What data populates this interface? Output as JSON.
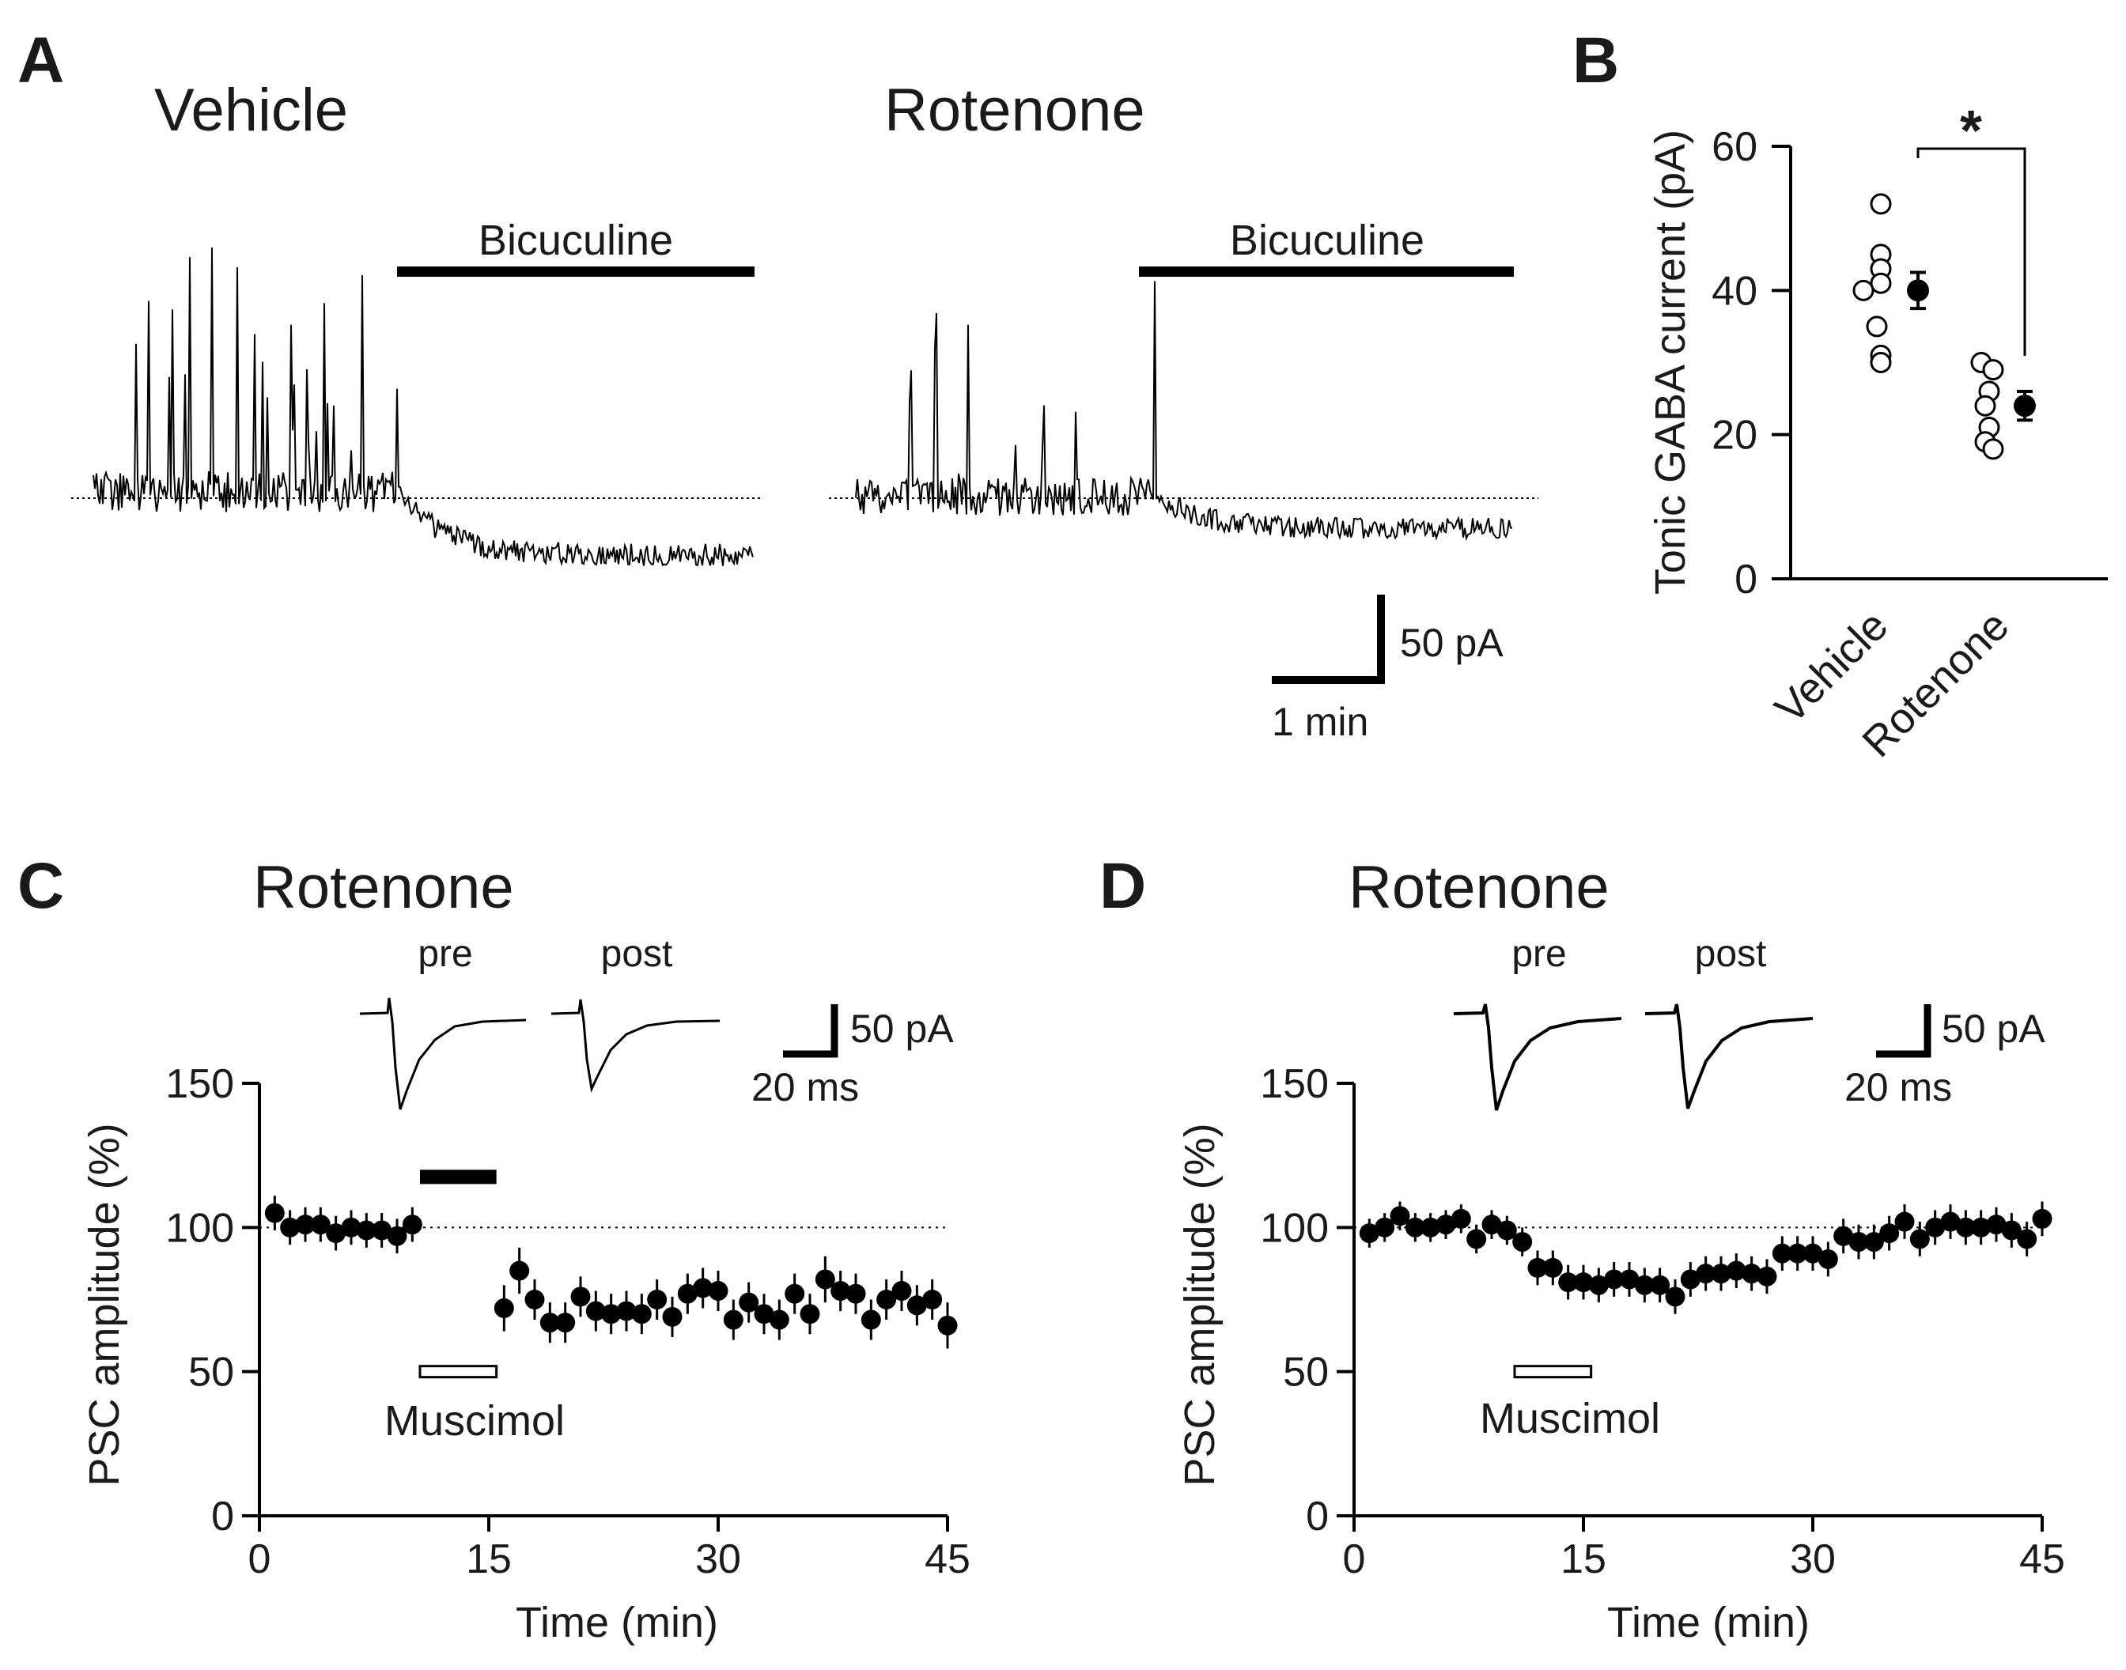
{
  "panel_letters": {
    "a": "A",
    "b": "B",
    "c": "C",
    "d": "D"
  },
  "panel_a": {
    "vehicle_title": "Vehicle",
    "rotenone_title": "Rotenone",
    "drug_bar_label": "Bicuculine",
    "scale_current": "50 pA",
    "scale_time": "1 min"
  },
  "panel_c": {
    "title": "Rotenone",
    "pre_label": "pre",
    "post_label": "post",
    "scale_current": "50 pA",
    "scale_time": "20 ms",
    "drug_label": "Muscimol"
  },
  "panel_d": {
    "title": "Rotenone",
    "pre_label": "pre",
    "post_label": "post",
    "scale_current": "50 pA",
    "scale_time": "20 ms",
    "drug_label": "Muscimol"
  },
  "chart_data": [
    {
      "id": "B",
      "type": "scatter",
      "title": "",
      "ylabel": "Tonic GABA current (pA)",
      "xlabel": "",
      "categories": [
        "Vehicle",
        "Rotenone"
      ],
      "ylim": [
        0,
        60
      ],
      "yticks": [
        0,
        20,
        40,
        60
      ],
      "significance": "*",
      "series": [
        {
          "name": "Vehicle",
          "individual": [
            52,
            45,
            43,
            41,
            40,
            35,
            31,
            30
          ],
          "mean": 40,
          "sem": 2.5
        },
        {
          "name": "Rotenone",
          "individual": [
            30,
            29,
            26,
            24,
            21,
            19,
            18
          ],
          "mean": 24,
          "sem": 2
        }
      ]
    },
    {
      "id": "C",
      "type": "scatter",
      "title": "Rotenone",
      "xlabel": "Time (min)",
      "ylabel": "PSC amplitude (%)",
      "xlim": [
        0,
        45
      ],
      "ylim": [
        0,
        150
      ],
      "xticks": [
        0,
        15,
        30,
        45
      ],
      "yticks": [
        0,
        50,
        100,
        150
      ],
      "reference_line": 100,
      "drug_application": [
        10.5,
        15.5
      ],
      "x": [
        1,
        2,
        3,
        4,
        5,
        6,
        7,
        8,
        9,
        10,
        16,
        17,
        18,
        19,
        20,
        21,
        22,
        23,
        24,
        25,
        26,
        27,
        28,
        29,
        30,
        31,
        32,
        33,
        34,
        35,
        36,
        37,
        38,
        39,
        40,
        41,
        42,
        43,
        44,
        45
      ],
      "values": [
        105,
        100,
        101,
        101,
        98,
        100,
        99,
        99,
        97,
        101,
        72,
        85,
        75,
        67,
        67,
        76,
        71,
        70,
        71,
        70,
        75,
        69,
        77,
        79,
        78,
        68,
        74,
        70,
        68,
        77,
        70,
        82,
        78,
        77,
        68,
        75,
        78,
        73,
        75,
        66
      ],
      "errors": [
        6,
        6,
        6,
        6,
        6,
        6,
        6,
        6,
        6,
        6,
        8,
        8,
        7,
        7,
        7,
        7,
        7,
        7,
        7,
        7,
        7,
        7,
        7,
        7,
        7,
        7,
        7,
        7,
        7,
        7,
        7,
        8,
        7,
        7,
        7,
        7,
        7,
        7,
        7,
        8
      ]
    },
    {
      "id": "D",
      "type": "scatter",
      "title": "Rotenone",
      "xlabel": "Time (min)",
      "ylabel": "PSC amplitude (%)",
      "xlim": [
        0,
        45
      ],
      "ylim": [
        0,
        150
      ],
      "xticks": [
        0,
        15,
        30,
        45
      ],
      "yticks": [
        0,
        50,
        100,
        150
      ],
      "reference_line": 100,
      "drug_application": [
        10.5,
        15.5
      ],
      "x": [
        1,
        2,
        3,
        4,
        5,
        6,
        7,
        8,
        9,
        10,
        11,
        12,
        13,
        14,
        15,
        16,
        17,
        18,
        19,
        20,
        21,
        22,
        23,
        24,
        25,
        26,
        27,
        28,
        29,
        30,
        31,
        32,
        33,
        34,
        35,
        36,
        37,
        38,
        39,
        40,
        41,
        42,
        43,
        44,
        45
      ],
      "values": [
        98,
        100,
        104,
        100,
        100,
        101,
        103,
        96,
        101,
        99,
        95,
        86,
        86,
        81,
        81,
        80,
        82,
        82,
        80,
        80,
        76,
        82,
        84,
        84,
        85,
        84,
        83,
        91,
        91,
        91,
        89,
        97,
        95,
        95,
        98,
        102,
        96,
        100,
        102,
        100,
        100,
        101,
        99,
        96,
        103
      ],
      "errors": [
        5,
        5,
        5,
        5,
        5,
        5,
        5,
        5,
        5,
        5,
        5,
        6,
        6,
        6,
        6,
        6,
        6,
        6,
        6,
        6,
        6,
        6,
        6,
        6,
        6,
        6,
        6,
        6,
        6,
        6,
        6,
        6,
        6,
        6,
        6,
        6,
        6,
        6,
        6,
        6,
        6,
        6,
        6,
        6,
        6
      ]
    }
  ]
}
